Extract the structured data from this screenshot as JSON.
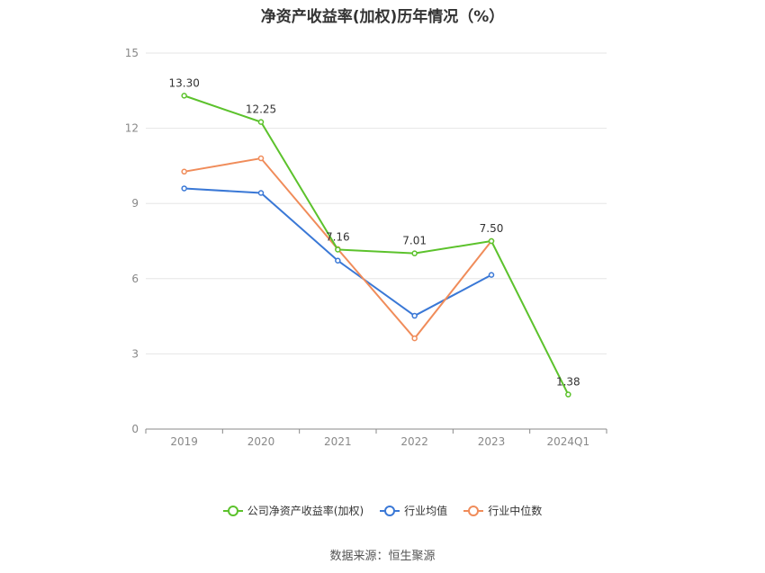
{
  "chart_data": {
    "type": "line",
    "title": "净资产收益率(加权)历年情况（%）",
    "categories": [
      "2019",
      "2020",
      "2021",
      "2022",
      "2023",
      "2024Q1"
    ],
    "ylim": [
      0,
      15
    ],
    "yticks": [
      0,
      3,
      6,
      9,
      12,
      15
    ],
    "grid": true,
    "legend_position": "bottom",
    "series": [
      {
        "name": "公司净资产收益率(加权)",
        "color": "#5cc22c",
        "values": [
          13.3,
          12.25,
          7.16,
          7.01,
          7.5,
          1.38
        ],
        "labels": [
          "13.30",
          "12.25",
          "7.16",
          "7.01",
          "7.50",
          "1.38"
        ]
      },
      {
        "name": "行业均值",
        "color": "#3a78d6",
        "values": [
          9.6,
          9.42,
          6.72,
          4.52,
          6.15,
          null
        ]
      },
      {
        "name": "行业中位数",
        "color": "#f08c5a",
        "values": [
          10.27,
          10.8,
          7.18,
          3.62,
          7.5,
          null
        ]
      }
    ]
  },
  "footer": {
    "source": "数据来源：恒生聚源"
  }
}
